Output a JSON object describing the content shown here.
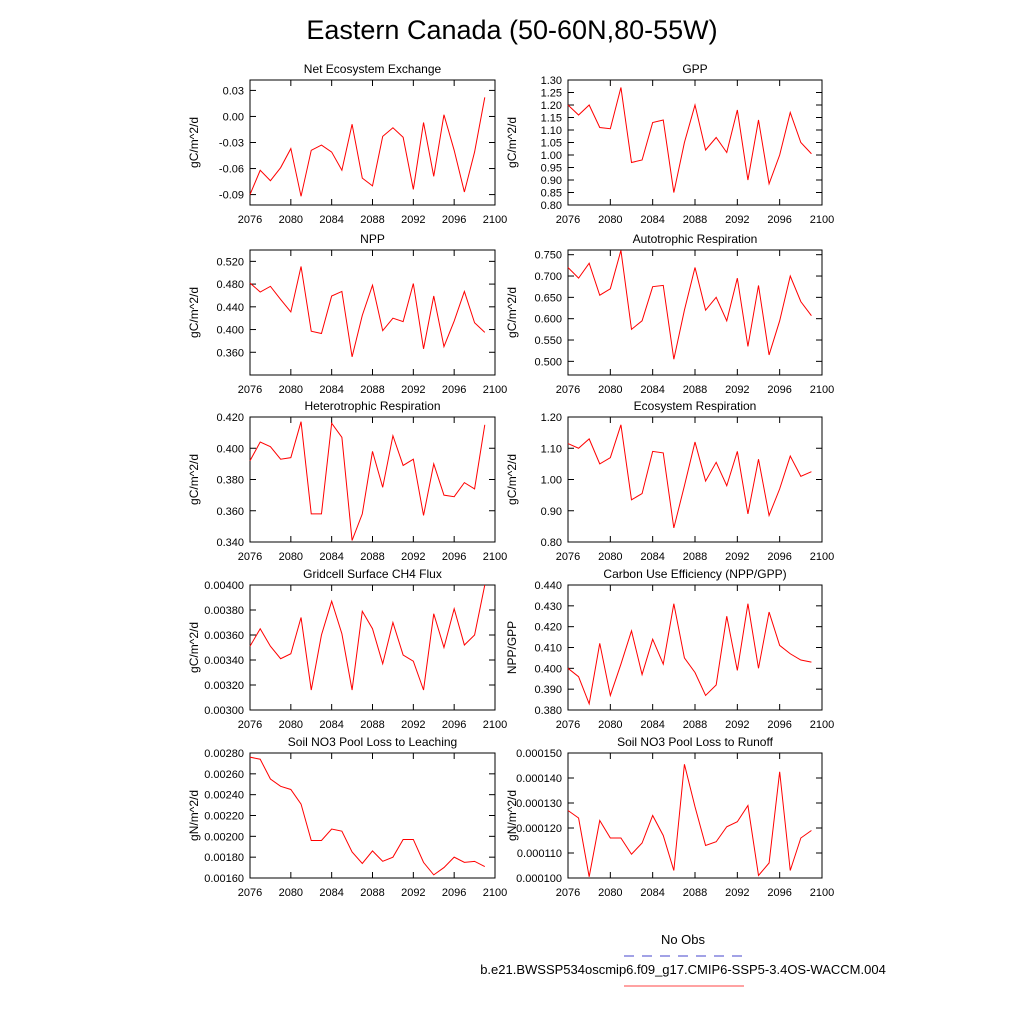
{
  "title": "Eastern Canada (50-60N,80-55W)",
  "legend": [
    {
      "name": "No Obs",
      "color": "#4444cc",
      "dashed": true
    },
    {
      "name": "b.e21.BWSSP534oscmip6.f09_g17.CMIP6-SSP5-3.4OS-WACCM.004",
      "color": "#ff4444",
      "dashed": false
    }
  ],
  "chart_data": [
    {
      "type": "line",
      "title": "Net Ecosystem Exchange",
      "ylabel": "gC/m^2/d",
      "color": "#ff0000",
      "xlim": [
        2076,
        2100
      ],
      "xticks": [
        2076,
        2080,
        2084,
        2088,
        2092,
        2096,
        2100
      ],
      "ylim": [
        -0.102,
        0.042
      ],
      "yticks": [
        0.03,
        {
          "value": 0,
          "label": "0.00"
        },
        -0.03,
        -0.06,
        -0.09
      ],
      "x": [
        2076,
        2077,
        2078,
        2079,
        2080,
        2081,
        2082,
        2083,
        2084,
        2085,
        2086,
        2087,
        2088,
        2089,
        2090,
        2091,
        2092,
        2093,
        2094,
        2095,
        2096,
        2097,
        2098,
        2099
      ],
      "values": [
        -0.09,
        -0.062,
        -0.074,
        -0.059,
        -0.037,
        -0.092,
        -0.039,
        -0.033,
        -0.041,
        -0.062,
        -0.009,
        -0.071,
        -0.08,
        -0.023,
        -0.013,
        -0.024,
        -0.084,
        -0.007,
        -0.069,
        0.002,
        -0.039,
        -0.087,
        -0.041,
        0.022
      ]
    },
    {
      "type": "line",
      "title": "GPP",
      "ylabel": "gC/m^2/d",
      "color": "#ff0000",
      "xlim": [
        2076,
        2100
      ],
      "xticks": [
        2076,
        2080,
        2084,
        2088,
        2092,
        2096,
        2100
      ],
      "ylim": [
        0.8,
        1.3
      ],
      "yticks": [
        {
          "value": 0.8,
          "label": "0.80"
        },
        0.85,
        {
          "value": 0.9,
          "label": "0.90"
        },
        0.95,
        {
          "value": 1,
          "label": "1.00"
        },
        1.05,
        {
          "value": 1.1,
          "label": "1.10"
        },
        1.15,
        {
          "value": 1.2,
          "label": "1.20"
        },
        1.25,
        {
          "value": 1.3,
          "label": "1.30"
        }
      ],
      "x": [
        2076,
        2077,
        2078,
        2079,
        2080,
        2081,
        2082,
        2083,
        2084,
        2085,
        2086,
        2087,
        2088,
        2089,
        2090,
        2091,
        2092,
        2093,
        2094,
        2095,
        2096,
        2097,
        2098,
        2099
      ],
      "values": [
        1.2,
        1.16,
        1.2,
        1.11,
        1.105,
        1.27,
        0.97,
        0.98,
        1.13,
        1.14,
        0.85,
        1.05,
        1.2,
        1.02,
        1.07,
        1.01,
        1.18,
        0.9,
        1.14,
        0.885,
        1.0,
        1.17,
        1.05,
        1.005
      ]
    },
    {
      "type": "line",
      "title": "NPP",
      "ylabel": "gC/m^2/d",
      "color": "#ff0000",
      "xlim": [
        2076,
        2100
      ],
      "xticks": [
        2076,
        2080,
        2084,
        2088,
        2092,
        2096,
        2100
      ],
      "ylim": [
        0.32,
        0.54
      ],
      "yticks": [
        {
          "value": 0.36,
          "label": "0.360"
        },
        {
          "value": 0.4,
          "label": "0.400"
        },
        {
          "value": 0.44,
          "label": "0.440"
        },
        {
          "value": 0.48,
          "label": "0.480"
        },
        {
          "value": 0.52,
          "label": "0.520"
        }
      ],
      "x": [
        2076,
        2077,
        2078,
        2079,
        2080,
        2081,
        2082,
        2083,
        2084,
        2085,
        2086,
        2087,
        2088,
        2089,
        2090,
        2091,
        2092,
        2093,
        2094,
        2095,
        2096,
        2097,
        2098,
        2099
      ],
      "values": [
        0.482,
        0.466,
        0.476,
        0.453,
        0.431,
        0.511,
        0.397,
        0.393,
        0.459,
        0.467,
        0.352,
        0.425,
        0.478,
        0.398,
        0.42,
        0.414,
        0.481,
        0.366,
        0.459,
        0.37,
        0.415,
        0.467,
        0.412,
        0.395
      ]
    },
    {
      "type": "line",
      "title": "Autotrophic Respiration",
      "ylabel": "gC/m^2/d",
      "color": "#ff0000",
      "xlim": [
        2076,
        2100
      ],
      "xticks": [
        2076,
        2080,
        2084,
        2088,
        2092,
        2096,
        2100
      ],
      "ylim": [
        0.468,
        0.761
      ],
      "yticks": [
        {
          "value": 0.5,
          "label": "0.500"
        },
        {
          "value": 0.55,
          "label": "0.550"
        },
        {
          "value": 0.6,
          "label": "0.600"
        },
        {
          "value": 0.65,
          "label": "0.650"
        },
        {
          "value": 0.7,
          "label": "0.700"
        },
        {
          "value": 0.75,
          "label": "0.750"
        }
      ],
      "x": [
        2076,
        2077,
        2078,
        2079,
        2080,
        2081,
        2082,
        2083,
        2084,
        2085,
        2086,
        2087,
        2088,
        2089,
        2090,
        2091,
        2092,
        2093,
        2094,
        2095,
        2096,
        2097,
        2098,
        2099
      ],
      "values": [
        0.72,
        0.695,
        0.73,
        0.655,
        0.67,
        0.76,
        0.575,
        0.595,
        0.675,
        0.678,
        0.505,
        0.62,
        0.72,
        0.62,
        0.65,
        0.595,
        0.695,
        0.535,
        0.678,
        0.515,
        0.595,
        0.7,
        0.64,
        0.607
      ]
    },
    {
      "type": "line",
      "title": "Heterotrophic Respiration",
      "ylabel": "gC/m^2/d",
      "color": "#ff0000",
      "xlim": [
        2076,
        2100
      ],
      "xticks": [
        2076,
        2080,
        2084,
        2088,
        2092,
        2096,
        2100
      ],
      "ylim": [
        0.34,
        0.42
      ],
      "yticks": [
        {
          "value": 0.34,
          "label": "0.340"
        },
        {
          "value": 0.36,
          "label": "0.360"
        },
        {
          "value": 0.38,
          "label": "0.380"
        },
        {
          "value": 0.4,
          "label": "0.400"
        },
        {
          "value": 0.42,
          "label": "0.420"
        }
      ],
      "x": [
        2076,
        2077,
        2078,
        2079,
        2080,
        2081,
        2082,
        2083,
        2084,
        2085,
        2086,
        2087,
        2088,
        2089,
        2090,
        2091,
        2092,
        2093,
        2094,
        2095,
        2096,
        2097,
        2098,
        2099
      ],
      "values": [
        0.392,
        0.404,
        0.401,
        0.393,
        0.394,
        0.417,
        0.358,
        0.358,
        0.416,
        0.407,
        0.341,
        0.358,
        0.398,
        0.375,
        0.408,
        0.389,
        0.393,
        0.357,
        0.39,
        0.37,
        0.369,
        0.378,
        0.374,
        0.415
      ]
    },
    {
      "type": "line",
      "title": "Ecosystem Respiration",
      "ylabel": "gC/m^2/d",
      "color": "#ff0000",
      "xlim": [
        2076,
        2100
      ],
      "xticks": [
        2076,
        2080,
        2084,
        2088,
        2092,
        2096,
        2100
      ],
      "ylim": [
        0.8,
        1.2
      ],
      "yticks": [
        {
          "value": 0.8,
          "label": "0.80"
        },
        {
          "value": 0.9,
          "label": "0.90"
        },
        {
          "value": 1,
          "label": "1.00"
        },
        {
          "value": 1.1,
          "label": "1.10"
        },
        {
          "value": 1.2,
          "label": "1.20"
        }
      ],
      "x": [
        2076,
        2077,
        2078,
        2079,
        2080,
        2081,
        2082,
        2083,
        2084,
        2085,
        2086,
        2087,
        2088,
        2089,
        2090,
        2091,
        2092,
        2093,
        2094,
        2095,
        2096,
        2097,
        2098,
        2099
      ],
      "values": [
        1.115,
        1.1,
        1.13,
        1.05,
        1.07,
        1.175,
        0.935,
        0.955,
        1.09,
        1.085,
        0.845,
        0.98,
        1.12,
        0.995,
        1.055,
        0.98,
        1.09,
        0.89,
        1.065,
        0.885,
        0.97,
        1.075,
        1.01,
        1.025
      ]
    },
    {
      "type": "line",
      "title": "Gridcell Surface CH4 Flux",
      "ylabel": "gC/m^2/d",
      "color": "#ff0000",
      "xlim": [
        2076,
        2100
      ],
      "xticks": [
        2076,
        2080,
        2084,
        2088,
        2092,
        2096,
        2100
      ],
      "ylim": [
        0.003,
        0.004
      ],
      "yticks": [
        {
          "value": 0.003,
          "label": "0.00300"
        },
        {
          "value": 0.0032,
          "label": "0.00320"
        },
        {
          "value": 0.0034,
          "label": "0.00340"
        },
        {
          "value": 0.0036,
          "label": "0.00360"
        },
        {
          "value": 0.0038,
          "label": "0.00380"
        },
        {
          "value": 0.004,
          "label": "0.00400"
        }
      ],
      "x": [
        2076,
        2077,
        2078,
        2079,
        2080,
        2081,
        2082,
        2083,
        2084,
        2085,
        2086,
        2087,
        2088,
        2089,
        2090,
        2091,
        2092,
        2093,
        2094,
        2095,
        2096,
        2097,
        2098,
        2099
      ],
      "values": [
        0.00351,
        0.00365,
        0.00351,
        0.00341,
        0.00345,
        0.00374,
        0.00316,
        0.0036,
        0.00387,
        0.00361,
        0.00316,
        0.00379,
        0.00365,
        0.00337,
        0.0037,
        0.00344,
        0.00339,
        0.00316,
        0.00377,
        0.0035,
        0.00381,
        0.00352,
        0.0036,
        0.004
      ]
    },
    {
      "type": "line",
      "title": "Carbon Use Efficiency (NPP/GPP)",
      "ylabel": "NPP/GPP",
      "color": "#ff0000",
      "xlim": [
        2076,
        2100
      ],
      "xticks": [
        2076,
        2080,
        2084,
        2088,
        2092,
        2096,
        2100
      ],
      "ylim": [
        0.38,
        0.44
      ],
      "yticks": [
        {
          "value": 0.38,
          "label": "0.380"
        },
        {
          "value": 0.39,
          "label": "0.390"
        },
        {
          "value": 0.4,
          "label": "0.400"
        },
        {
          "value": 0.41,
          "label": "0.410"
        },
        {
          "value": 0.42,
          "label": "0.420"
        },
        {
          "value": 0.43,
          "label": "0.430"
        },
        {
          "value": 0.44,
          "label": "0.440"
        }
      ],
      "x": [
        2076,
        2077,
        2078,
        2079,
        2080,
        2081,
        2082,
        2083,
        2084,
        2085,
        2086,
        2087,
        2088,
        2089,
        2090,
        2091,
        2092,
        2093,
        2094,
        2095,
        2096,
        2097,
        2098,
        2099
      ],
      "values": [
        0.4,
        0.396,
        0.383,
        0.412,
        0.387,
        0.402,
        0.418,
        0.397,
        0.414,
        0.402,
        0.431,
        0.405,
        0.398,
        0.387,
        0.392,
        0.425,
        0.399,
        0.431,
        0.4,
        0.427,
        0.411,
        0.407,
        0.404,
        0.403
      ]
    },
    {
      "type": "line",
      "title": "Soil NO3 Pool Loss to Leaching",
      "ylabel": "gN/m^2/d",
      "color": "#ff0000",
      "xlim": [
        2076,
        2100
      ],
      "xticks": [
        2076,
        2080,
        2084,
        2088,
        2092,
        2096,
        2100
      ],
      "ylim": [
        0.0016,
        0.0028
      ],
      "yticks": [
        {
          "value": 0.0016,
          "label": "0.00160"
        },
        {
          "value": 0.0018,
          "label": "0.00180"
        },
        {
          "value": 0.002,
          "label": "0.00200"
        },
        {
          "value": 0.0022,
          "label": "0.00220"
        },
        {
          "value": 0.0024,
          "label": "0.00240"
        },
        {
          "value": 0.0026,
          "label": "0.00260"
        },
        {
          "value": 0.0028,
          "label": "0.00280"
        }
      ],
      "x": [
        2076,
        2077,
        2078,
        2079,
        2080,
        2081,
        2082,
        2083,
        2084,
        2085,
        2086,
        2087,
        2088,
        2089,
        2090,
        2091,
        2092,
        2093,
        2094,
        2095,
        2096,
        2097,
        2098,
        2099
      ],
      "values": [
        0.00276,
        0.00274,
        0.00255,
        0.00248,
        0.00245,
        0.00231,
        0.00196,
        0.00196,
        0.00207,
        0.00205,
        0.00185,
        0.00174,
        0.00186,
        0.00176,
        0.0018,
        0.00197,
        0.00197,
        0.00175,
        0.00163,
        0.0017,
        0.0018,
        0.00175,
        0.00176,
        0.00171
      ]
    },
    {
      "type": "line",
      "title": "Soil NO3 Pool Loss to Runoff",
      "ylabel": "gN/m^2/d",
      "color": "#ff0000",
      "xlim": [
        2076,
        2100
      ],
      "xticks": [
        2076,
        2080,
        2084,
        2088,
        2092,
        2096,
        2100
      ],
      "ylim": [
        0.0001,
        0.00015
      ],
      "yticks": [
        {
          "value": 0.0001,
          "label": "0.000100"
        },
        {
          "value": 0.00011,
          "label": "0.000110"
        },
        {
          "value": 0.00012,
          "label": "0.000120"
        },
        {
          "value": 0.00013,
          "label": "0.000130"
        },
        {
          "value": 0.00014,
          "label": "0.000140"
        },
        {
          "value": 0.00015,
          "label": "0.000150"
        }
      ],
      "x": [
        2076,
        2077,
        2078,
        2079,
        2080,
        2081,
        2082,
        2083,
        2084,
        2085,
        2086,
        2087,
        2088,
        2089,
        2090,
        2091,
        2092,
        2093,
        2094,
        2095,
        2096,
        2097,
        2098,
        2099
      ],
      "values": [
        0.000127,
        0.000124,
        0.0001005,
        0.000123,
        0.000116,
        0.000116,
        0.0001095,
        0.000114,
        0.000125,
        0.000117,
        0.000103,
        0.0001455,
        0.0001285,
        0.000113,
        0.0001145,
        0.0001205,
        0.0001225,
        0.000129,
        0.000101,
        0.000106,
        0.0001425,
        0.000103,
        0.000116,
        0.000119
      ]
    }
  ]
}
